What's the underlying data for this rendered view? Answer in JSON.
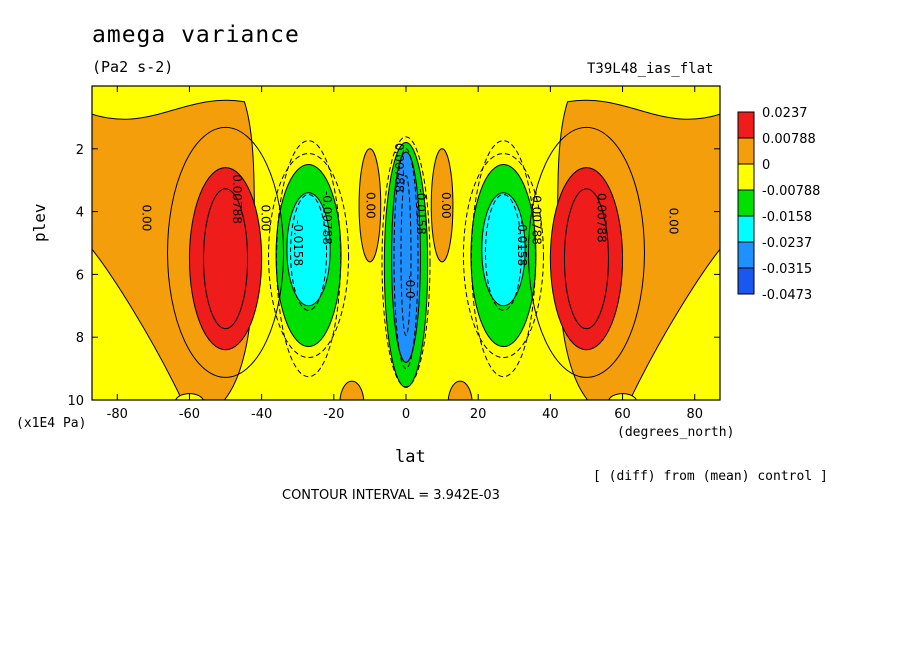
{
  "header": {
    "title": "amega variance",
    "units": "(Pa2 s-2)",
    "run_label": "T39L48_ias_flat"
  },
  "axes": {
    "ylabel": "plev",
    "yunit": "(x1E4 Pa)",
    "xlabel": "lat",
    "xunit": "(degrees_north)"
  },
  "footer": {
    "diff_note": "[ (diff) from (mean) control ]",
    "contour_interval": "CONTOUR INTERVAL = 3.942E-03"
  },
  "colors": {
    "red": "#ef1c1c",
    "orange": "#f59e0b",
    "yellow": "#ffff00",
    "green": "#00e000",
    "cyan": "#00ffff",
    "blue": "#1e90ff",
    "darkblue": "#1a56f0"
  },
  "chart_data": {
    "type": "heatmap",
    "xlim": [
      -87,
      87
    ],
    "ylim": [
      10,
      0
    ],
    "xticks": [
      -80,
      -60,
      -40,
      -20,
      0,
      20,
      40,
      60,
      80
    ],
    "yticks": [
      2,
      4,
      6,
      8,
      10
    ],
    "legend": {
      "placement": "right",
      "levels": [
        "0.0237",
        "0.00788",
        "0",
        "-0.00788",
        "-0.0158",
        "-0.0237",
        "-0.0315",
        "-0.0473"
      ],
      "colors": [
        "#ef1c1c",
        "#f59e0b",
        "#ffff00",
        "#00e000",
        "#00ffff",
        "#1e90ff",
        "#1a56f0"
      ]
    },
    "features": [
      {
        "kind": "orange",
        "lat": [
          -87,
          -42
        ],
        "plev": [
          0.0,
          10.0
        ]
      },
      {
        "kind": "red",
        "lat": [
          -60,
          -40
        ],
        "plev": [
          2.6,
          8.4
        ]
      },
      {
        "kind": "green",
        "lat": [
          -36,
          -18
        ],
        "plev": [
          2.5,
          8.3
        ]
      },
      {
        "kind": "cyan",
        "lat": [
          -33,
          -21
        ],
        "plev": [
          3.4,
          7.0
        ]
      },
      {
        "kind": "orange",
        "lat": [
          -13,
          -7
        ],
        "plev": [
          2.0,
          5.6
        ]
      },
      {
        "kind": "green",
        "lat": [
          -6,
          6
        ],
        "plev": [
          1.8,
          9.6
        ]
      },
      {
        "kind": "blue",
        "lat": [
          -4,
          4
        ],
        "plev": [
          2.1,
          8.8
        ]
      },
      {
        "kind": "orange",
        "lat": [
          7,
          13
        ],
        "plev": [
          2.0,
          5.6
        ]
      },
      {
        "kind": "green",
        "lat": [
          18,
          36
        ],
        "plev": [
          2.5,
          8.3
        ]
      },
      {
        "kind": "cyan",
        "lat": [
          21,
          33
        ],
        "plev": [
          3.4,
          7.0
        ]
      },
      {
        "kind": "orange",
        "lat": [
          42,
          87
        ],
        "plev": [
          0.0,
          10.0
        ]
      },
      {
        "kind": "red",
        "lat": [
          40,
          60
        ],
        "plev": [
          2.6,
          8.4
        ]
      }
    ],
    "contour_labels": [
      {
        "text": "0.00",
        "lat": -73,
        "plev": 4.2
      },
      {
        "text": "0.00788",
        "lat": -48,
        "plev": 3.6
      },
      {
        "text": "0.00",
        "lat": -40,
        "plev": 4.2
      },
      {
        "text": "-0.0158",
        "lat": -31,
        "plev": 5.0
      },
      {
        "text": "-0.00788",
        "lat": -23,
        "plev": 4.2
      },
      {
        "text": "0.00",
        "lat": -11,
        "plev": 3.8
      },
      {
        "text": "0.00788",
        "lat": -3,
        "plev": 2.6
      },
      {
        "text": "-0.0158",
        "lat": 3,
        "plev": 4.0
      },
      {
        "text": "-0.0",
        "lat": 0,
        "plev": 6.4
      },
      {
        "text": "0.00",
        "lat": 10,
        "plev": 3.8
      },
      {
        "text": "-0.0158",
        "lat": 31,
        "plev": 5.0
      },
      {
        "text": "-0.00788",
        "lat": 35,
        "plev": 4.2
      },
      {
        "text": "0.00788",
        "lat": 53,
        "plev": 4.2
      },
      {
        "text": "0.00",
        "lat": 73,
        "plev": 4.3
      }
    ]
  }
}
